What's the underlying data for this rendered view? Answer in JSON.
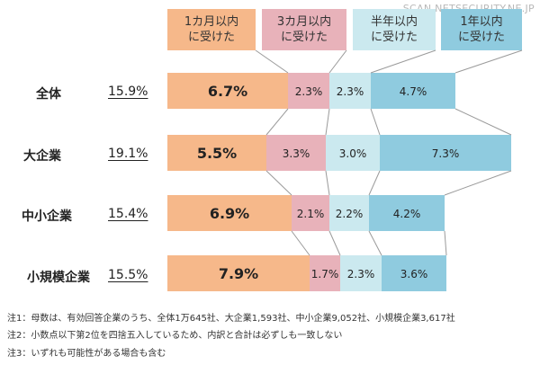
{
  "watermark": "SCAN.NETSECURITY.NE.JP",
  "colors": {
    "s0": "#f6b88a",
    "s1": "#e8b2ba",
    "s2": "#cbe9ef",
    "s3": "#8fcbdf",
    "connector": "#9a9a9a"
  },
  "chart_data": {
    "type": "bar",
    "orientation": "horizontal",
    "stacked": true,
    "legend_position": "top",
    "categories": [
      "全体",
      "大企業",
      "中小企業",
      "小規模企業"
    ],
    "totals": [
      "15.9%",
      "19.1%",
      "15.4%",
      "15.5%"
    ],
    "series": [
      {
        "name": "1カ月以内\nに受けた",
        "values": [
          6.7,
          5.5,
          6.9,
          7.9
        ]
      },
      {
        "name": "3カ月以内\nに受けた",
        "values": [
          2.3,
          3.3,
          2.1,
          1.7
        ]
      },
      {
        "name": "半年以内\nに受けた",
        "values": [
          2.3,
          3.0,
          2.2,
          2.3
        ]
      },
      {
        "name": "1年以内\nに受けた",
        "values": [
          4.7,
          7.3,
          4.2,
          3.6
        ]
      }
    ]
  },
  "notes": [
    "注1：母数は、有効回答企業のうち、全体1万645社、大企業1,593社、中小企業9,052社、小規模企業3,617社",
    "注2：小数点以下第2位を四捨五入しているため、内訳と合計は必ずしも一致しない",
    "注3：いずれも可能性がある場合も含む"
  ]
}
